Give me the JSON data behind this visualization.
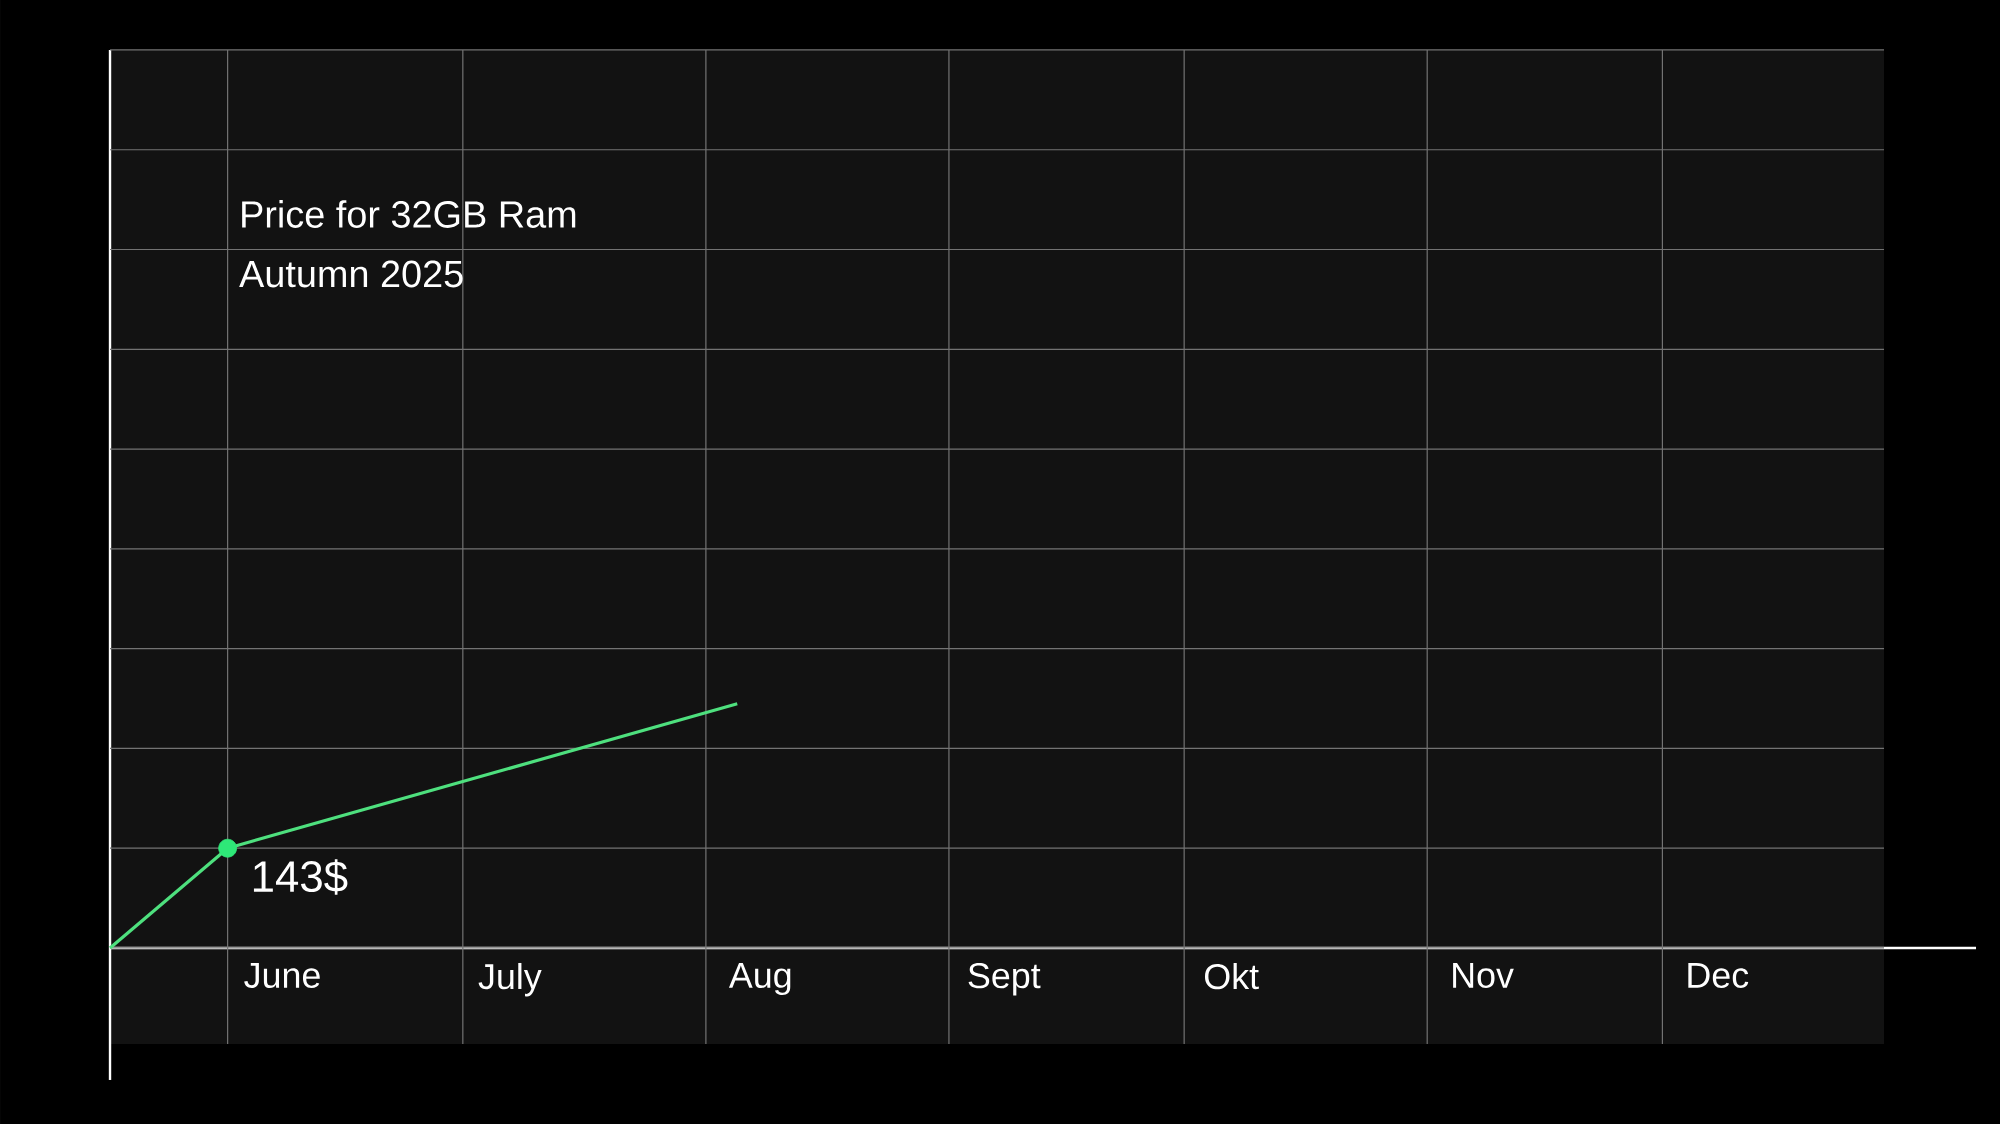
{
  "chart_data": {
    "type": "line",
    "title": "Price for 32GB Ram",
    "subtitle": "Autumn 2025",
    "grid": true,
    "tick_labels": "x",
    "xlim": [
      "2025-05-17",
      "2026-01-10"
    ],
    "ylim": [
      0,
      1287
    ],
    "xticks": [
      {
        "value": "2025-06-01",
        "label": null
      },
      {
        "value": "2025-07-01",
        "label": null
      },
      {
        "value": "2025-08-01",
        "label": null
      },
      {
        "value": "2025-09-01",
        "label": null
      },
      {
        "value": "2025-10-01",
        "label": null
      },
      {
        "value": "2025-11-01",
        "label": null
      },
      {
        "value": "2025-12-01",
        "label": null
      },
      {
        "value": "2025-06-08",
        "label": "June"
      },
      {
        "value": "2025-07-07",
        "label": "July"
      },
      {
        "value": "2025-08-08",
        "label": "Aug"
      },
      {
        "value": "2025-09-08",
        "label": "Sept"
      },
      {
        "value": "2025-10-07",
        "label": "Okt"
      },
      {
        "value": "2025-11-08",
        "label": "Nov"
      },
      {
        "value": "2025-12-08",
        "label": "Dec"
      }
    ],
    "yticks": [
      {
        "value": 0,
        "label": null
      },
      {
        "value": 143,
        "label": null
      },
      {
        "value": 286,
        "label": null
      },
      {
        "value": 429,
        "label": null
      },
      {
        "value": 572,
        "label": null
      },
      {
        "value": 715,
        "label": null
      },
      {
        "value": 858,
        "label": null
      },
      {
        "value": 1001,
        "label": null
      },
      {
        "value": 1144,
        "label": null
      },
      {
        "value": 1287,
        "label": null
      }
    ],
    "series": [
      {
        "x": [
          "2025-05-17",
          "2025-06-01",
          "2025-08-05"
        ],
        "values": [
          0,
          143,
          350
        ],
        "color": "#4ee07e",
        "marker": "none"
      },
      {
        "type": "scatter",
        "x": [
          "2025-06-01"
        ],
        "values": [
          143
        ],
        "color": "#2ee878",
        "marker": "circle",
        "value_labels": [
          "143$"
        ]
      }
    ]
  }
}
